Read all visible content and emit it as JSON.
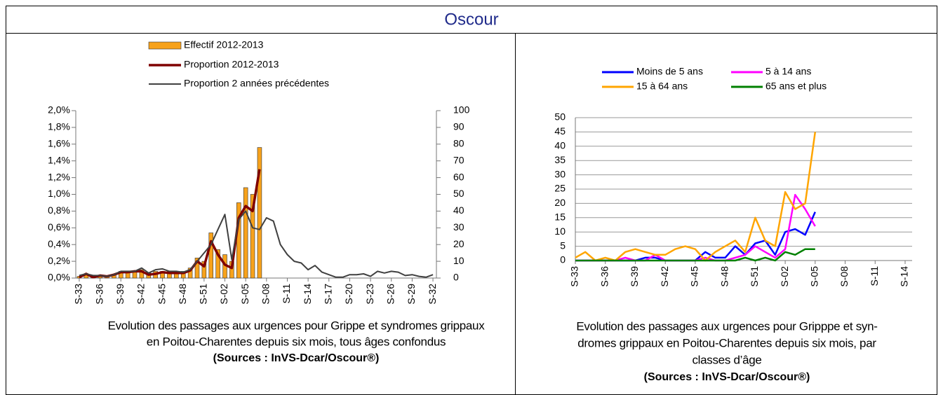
{
  "title": "Oscour",
  "chart_data": [
    {
      "type": "combo",
      "categories": [
        "S-33",
        null,
        null,
        "S-36",
        null,
        null,
        "S-39",
        null,
        null,
        "S-42",
        null,
        null,
        "S-45",
        null,
        null,
        "S-48",
        null,
        null,
        "S-51",
        null,
        null,
        "S-02",
        null,
        null,
        "S-05",
        null,
        null,
        "S-08",
        null,
        null,
        "S-11",
        null,
        null,
        "S-14",
        null,
        null,
        "S-17",
        null,
        null,
        "S-20",
        null,
        null,
        "S-23",
        null,
        null,
        "S-26",
        null,
        null,
        "S-29",
        null,
        null,
        "S-32"
      ],
      "series": [
        {
          "name": "Effectif 2012-2013",
          "type": "bar",
          "axis": "y2",
          "color": "#f7a21b",
          "values": [
            1,
            2,
            1,
            1,
            1,
            2,
            4,
            4,
            4,
            5,
            3,
            4,
            4,
            4,
            4,
            4,
            6,
            12,
            10,
            27,
            17,
            14,
            10,
            45,
            54,
            50,
            78,
            null,
            null,
            null,
            null,
            null,
            null,
            null,
            null,
            null,
            null,
            null,
            null,
            null,
            null,
            null,
            null,
            null,
            null,
            null,
            null,
            null,
            null,
            null,
            null,
            null
          ]
        },
        {
          "name": "Proportion 2012-2013",
          "type": "line",
          "color": "#7f0000",
          "values": [
            0.01,
            0.05,
            0.01,
            0.03,
            0.02,
            0.04,
            0.07,
            0.07,
            0.08,
            0.08,
            0.04,
            0.05,
            0.07,
            0.06,
            0.06,
            0.06,
            0.09,
            0.2,
            0.14,
            0.44,
            0.28,
            0.16,
            0.12,
            0.72,
            0.86,
            0.8,
            1.3,
            null,
            null,
            null,
            null,
            null,
            null,
            null,
            null,
            null,
            null,
            null,
            null,
            null,
            null,
            null,
            null,
            null,
            null,
            null,
            null,
            null,
            null,
            null,
            null,
            null
          ]
        },
        {
          "name": "Proportion 2 années précédentes",
          "type": "line",
          "color": "#404040",
          "values": [
            0.03,
            0.05,
            0.03,
            0.03,
            0.02,
            0.04,
            0.08,
            0.08,
            0.08,
            0.12,
            0.06,
            0.1,
            0.11,
            0.08,
            0.08,
            0.07,
            0.1,
            0.2,
            0.3,
            0.4,
            0.58,
            0.76,
            0.22,
            0.7,
            0.8,
            0.6,
            0.58,
            0.72,
            0.68,
            0.4,
            0.28,
            0.2,
            0.18,
            0.1,
            0.15,
            0.07,
            0.04,
            0.01,
            0.01,
            0.04,
            0.04,
            0.05,
            0.02,
            0.08,
            0.06,
            0.08,
            0.07,
            0.03,
            0.04,
            0.02,
            0.01,
            0.04
          ]
        }
      ],
      "ylim": [
        0,
        2
      ],
      "yticks": [
        {
          "value": 0,
          "label": "0,0%"
        },
        {
          "value": 0.2,
          "label": "0,2%"
        },
        {
          "value": 0.4,
          "label": "0,4%"
        },
        {
          "value": 0.6,
          "label": "0,6%"
        },
        {
          "value": 0.8,
          "label": "0,8%"
        },
        {
          "value": 1,
          "label": "1,0%"
        },
        {
          "value": 1.2,
          "label": "1,2%"
        },
        {
          "value": 1.4,
          "label": "1,4%"
        },
        {
          "value": 1.6,
          "label": "1,6%"
        },
        {
          "value": 1.8,
          "label": "1,8%"
        },
        {
          "value": 2,
          "label": "2,0%"
        }
      ],
      "y2lim": [
        0,
        100
      ],
      "y2ticks": [
        0,
        10,
        20,
        30,
        40,
        50,
        60,
        70,
        80,
        90,
        100
      ],
      "grid": false,
      "caption": [
        "Evolution des passages aux urgences pour Grippe et syndromes grippaux",
        "en Poitou-Charentes depuis six mois, tous âges confondus"
      ],
      "source": "(Sources : InVS-Dcar/Oscour®)"
    },
    {
      "type": "line",
      "categories": [
        "S-33",
        null,
        null,
        "S-36",
        null,
        null,
        "S-39",
        null,
        null,
        "S-42",
        null,
        null,
        "S-45",
        null,
        null,
        "S-48",
        null,
        null,
        "S-51",
        null,
        null,
        "S-02",
        null,
        null,
        "S-05",
        null,
        null,
        "S-08",
        null,
        null,
        "S-11",
        null,
        null,
        "S-14"
      ],
      "series": [
        {
          "name": "Moins de 5 ans",
          "color": "#0000ff",
          "values": [
            0,
            0,
            0,
            0,
            0,
            0,
            0,
            1,
            1,
            0,
            0,
            0,
            0,
            3,
            1,
            1,
            5,
            2,
            6,
            7,
            2,
            10,
            11,
            9,
            17,
            null,
            null,
            null,
            null,
            null,
            null,
            null,
            null,
            null
          ]
        },
        {
          "name": "5 à 14 ans",
          "color": "#ff00ff",
          "values": [
            0,
            0,
            0,
            0,
            0,
            1,
            0,
            0,
            2,
            0,
            0,
            0,
            0,
            1,
            0,
            0,
            1,
            2,
            5,
            3,
            1,
            4,
            23,
            18,
            12,
            null,
            null,
            null,
            null,
            null,
            null,
            null,
            null,
            null
          ]
        },
        {
          "name": "15 à 64 ans",
          "color": "#ffa500",
          "values": [
            1,
            3,
            0,
            1,
            0,
            3,
            4,
            3,
            2,
            2,
            4,
            5,
            4,
            0,
            3,
            5,
            7,
            3,
            15,
            7,
            5,
            24,
            18,
            20,
            45,
            null,
            null,
            null,
            null,
            null,
            null,
            null,
            null,
            null
          ]
        },
        {
          "name": "65 ans et plus",
          "color": "#008000",
          "values": [
            0,
            0,
            0,
            0,
            0,
            0,
            0,
            0,
            0,
            0,
            0,
            0,
            0,
            0,
            0,
            0,
            0,
            1,
            0,
            1,
            0,
            3,
            2,
            4,
            4,
            null,
            null,
            null,
            null,
            null,
            null,
            null,
            null,
            null
          ]
        }
      ],
      "ylim": [
        0,
        50
      ],
      "yticks": [
        0,
        5,
        10,
        15,
        20,
        25,
        30,
        35,
        40,
        45,
        50
      ],
      "grid": true,
      "caption": [
        "Evolution des passages aux urgences pour Gripppe et syn-",
        "dromes grippaux  en Poitou-Charentes depuis six mois, par",
        "classes d’âge"
      ],
      "source": "(Sources : InVS-Dcar/Oscour®)"
    }
  ]
}
